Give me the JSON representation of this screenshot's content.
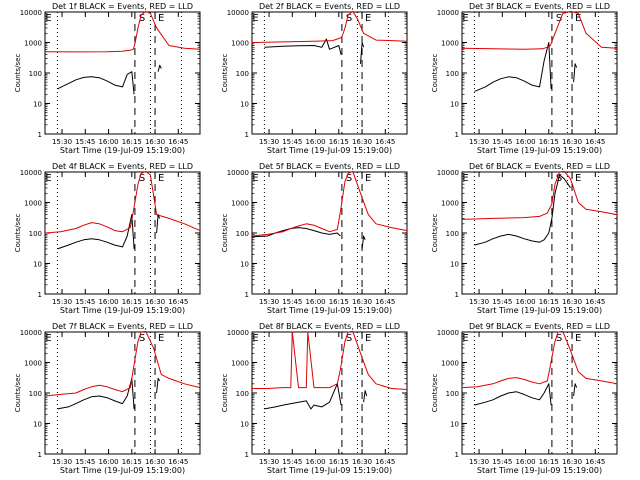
{
  "figure": {
    "panel_title_suffix": " BLACK = Events, RED = LLD",
    "ylabel": "Counts/sec",
    "xlabel": "Start Time (19-Jul-09 15:19:00)",
    "series_colors": {
      "events": "#000000",
      "lld": "#e00000"
    },
    "marker_labels": [
      "E",
      "S",
      "E"
    ]
  },
  "chart_data": [
    {
      "type": "line",
      "title": "Det 1f BLACK = Events, RED = LLD",
      "detector": "Det 1f",
      "xlabel": "Start Time (19-Jul-09 15:19:00)",
      "ylabel": "Counts/sec",
      "y_scale": "log",
      "ylim": [
        1,
        10000
      ],
      "x_tick_labels": [
        "15:30",
        "15:45",
        "16:00",
        "16:15",
        "16:30",
        "16:45"
      ],
      "x_ticks_min": [
        11,
        26,
        41,
        56,
        71,
        86
      ],
      "xlim_min": [
        0,
        100
      ],
      "dotted_lines_min": [
        8,
        68,
        88
      ],
      "dashed_lines_min": [
        58,
        71
      ],
      "series": [
        {
          "name": "Events",
          "color": "#000000",
          "x": [
            8,
            15,
            20,
            25,
            30,
            35,
            40,
            45,
            50,
            53,
            56,
            57.5
          ],
          "y": [
            30,
            45,
            60,
            72,
            75,
            70,
            55,
            40,
            35,
            90,
            110,
            20
          ]
        },
        {
          "name": "LLD",
          "color": "#e00000",
          "x": [
            0,
            20,
            40,
            50,
            55,
            57,
            58,
            60,
            62,
            65,
            68,
            72,
            80,
            90,
            100
          ],
          "y": [
            500,
            490,
            500,
            520,
            560,
            600,
            900,
            3000,
            8000,
            12000,
            9000,
            3000,
            800,
            650,
            600
          ]
        },
        {
          "name": "Events",
          "color": "#000000",
          "x": [
            73,
            74,
            75
          ],
          "y": [
            110,
            180,
            140
          ]
        }
      ]
    },
    {
      "type": "line",
      "title": "Det 2f BLACK = Events, RED = LLD",
      "detector": "Det 2f",
      "xlabel": "Start Time (19-Jul-09 15:19:00)",
      "ylabel": "Counts/sec",
      "y_scale": "log",
      "ylim": [
        1,
        10000
      ],
      "x_tick_labels": [
        "15:30",
        "15:45",
        "16:00",
        "16:15",
        "16:30",
        "16:45"
      ],
      "x_ticks_min": [
        11,
        26,
        41,
        56,
        71,
        86
      ],
      "xlim_min": [
        0,
        100
      ],
      "dotted_lines_min": [
        8,
        68,
        88
      ],
      "dashed_lines_min": [
        58,
        71
      ],
      "series": [
        {
          "name": "Events",
          "color": "#000000",
          "x": [
            8,
            20,
            30,
            40,
            45,
            48,
            50,
            56,
            57.5
          ],
          "y": [
            700,
            750,
            780,
            800,
            700,
            1300,
            600,
            800,
            400
          ]
        },
        {
          "name": "LLD",
          "color": "#e00000",
          "x": [
            0,
            20,
            40,
            52,
            55,
            57,
            58,
            60,
            62,
            65,
            68,
            72,
            80,
            90,
            100
          ],
          "y": [
            1000,
            1050,
            1100,
            1150,
            1300,
            1400,
            1500,
            3000,
            8000,
            12000,
            6000,
            2000,
            1200,
            1150,
            1100
          ]
        },
        {
          "name": "Events",
          "color": "#000000",
          "x": [
            70,
            71,
            72
          ],
          "y": [
            200,
            1000,
            700
          ]
        }
      ]
    },
    {
      "type": "line",
      "title": "Det 3f BLACK = Events, RED = LLD",
      "detector": "Det 3f",
      "xlabel": "Start Time (19-Jul-09 15:19:00)",
      "ylabel": "Counts/sec",
      "y_scale": "log",
      "ylim": [
        1,
        10000
      ],
      "x_tick_labels": [
        "15:30",
        "15:45",
        "16:00",
        "16:15",
        "16:30",
        "16:45"
      ],
      "x_ticks_min": [
        11,
        26,
        41,
        56,
        71,
        86
      ],
      "xlim_min": [
        0,
        100
      ],
      "dotted_lines_min": [
        8,
        68,
        88
      ],
      "dashed_lines_min": [
        58,
        71
      ],
      "series": [
        {
          "name": "Events",
          "color": "#000000",
          "x": [
            8,
            15,
            20,
            25,
            30,
            35,
            40,
            45,
            50,
            53,
            56,
            57.5
          ],
          "y": [
            25,
            35,
            50,
            65,
            75,
            70,
            55,
            40,
            35,
            250,
            1000,
            30
          ]
        },
        {
          "name": "LLD",
          "color": "#e00000",
          "x": [
            0,
            20,
            40,
            52,
            55,
            57,
            60,
            65,
            70,
            75,
            80,
            90,
            100
          ],
          "y": [
            650,
            620,
            600,
            620,
            700,
            800,
            2000,
            9000,
            12000,
            9000,
            2000,
            700,
            650
          ]
        },
        {
          "name": "Events",
          "color": "#000000",
          "x": [
            72,
            73,
            74
          ],
          "y": [
            50,
            200,
            150
          ]
        }
      ]
    },
    {
      "type": "line",
      "title": "Det 4f BLACK = Events, RED = LLD",
      "detector": "Det 4f",
      "xlabel": "Start Time (19-Jul-09 15:19:00)",
      "ylabel": "Counts/sec",
      "y_scale": "log",
      "ylim": [
        1,
        10000
      ],
      "x_tick_labels": [
        "15:30",
        "15:45",
        "16:00",
        "16:15",
        "16:30",
        "16:45"
      ],
      "x_ticks_min": [
        11,
        26,
        41,
        56,
        71,
        86
      ],
      "xlim_min": [
        0,
        100
      ],
      "dotted_lines_min": [
        8,
        68,
        88
      ],
      "dashed_lines_min": [
        58,
        71
      ],
      "series": [
        {
          "name": "Events",
          "color": "#000000",
          "x": [
            8,
            15,
            20,
            25,
            30,
            35,
            40,
            45,
            50,
            53,
            56,
            57.5
          ],
          "y": [
            30,
            40,
            50,
            60,
            65,
            60,
            50,
            40,
            35,
            80,
            400,
            30
          ]
        },
        {
          "name": "LLD",
          "color": "#e00000",
          "x": [
            0,
            10,
            20,
            25,
            30,
            35,
            40,
            45,
            50,
            55,
            57,
            60,
            62,
            65,
            68,
            72,
            80,
            90,
            100
          ],
          "y": [
            100,
            110,
            140,
            180,
            220,
            200,
            160,
            120,
            110,
            150,
            500,
            4000,
            9000,
            12000,
            8000,
            400,
            300,
            200,
            120
          ]
        },
        {
          "name": "Events",
          "color": "#000000",
          "x": [
            72,
            73,
            74
          ],
          "y": [
            100,
            400,
            300
          ]
        }
      ]
    },
    {
      "type": "line",
      "title": "Det 5f BLACK = Events, RED = LLD",
      "detector": "Det 5f",
      "xlabel": "Start Time (19-Jul-09 15:19:00)",
      "ylabel": "Counts/sec",
      "y_scale": "log",
      "ylim": [
        1,
        10000
      ],
      "x_tick_labels": [
        "15:30",
        "15:45",
        "16:00",
        "16:15",
        "16:30",
        "16:45"
      ],
      "x_ticks_min": [
        11,
        26,
        41,
        56,
        71,
        86
      ],
      "xlim_min": [
        0,
        100
      ],
      "dotted_lines_min": [
        8,
        68,
        88
      ],
      "dashed_lines_min": [
        58,
        71
      ],
      "series": [
        {
          "name": "Events",
          "color": "#000000",
          "x": [
            0,
            10,
            15,
            20,
            25,
            30,
            35,
            40,
            45,
            50,
            55,
            57
          ],
          "y": [
            75,
            80,
            100,
            120,
            140,
            150,
            140,
            120,
            100,
            90,
            100,
            80
          ]
        },
        {
          "name": "LLD",
          "color": "#e00000",
          "x": [
            0,
            10,
            20,
            25,
            30,
            35,
            40,
            45,
            50,
            55,
            57,
            60,
            62,
            65,
            70,
            75,
            80,
            90,
            100
          ],
          "y": [
            80,
            90,
            110,
            140,
            170,
            200,
            180,
            140,
            110,
            130,
            500,
            5000,
            9000,
            12000,
            2000,
            400,
            200,
            150,
            120
          ]
        },
        {
          "name": "Events",
          "color": "#000000",
          "x": [
            71,
            72,
            73
          ],
          "y": [
            30,
            80,
            60
          ]
        }
      ]
    },
    {
      "type": "line",
      "title": "Det 6f BLACK = Events, RED = LLD",
      "detector": "Det 6f",
      "xlabel": "Start Time (19-Jul-09 15:19:00)",
      "ylabel": "Counts/sec",
      "y_scale": "log",
      "ylim": [
        1,
        10000
      ],
      "x_tick_labels": [
        "15:30",
        "15:45",
        "16:00",
        "16:15",
        "16:30",
        "16:45"
      ],
      "x_ticks_min": [
        11,
        26,
        41,
        56,
        71,
        86
      ],
      "xlim_min": [
        0,
        100
      ],
      "dotted_lines_min": [
        8,
        68,
        88
      ],
      "dashed_lines_min": [
        58,
        71
      ],
      "series": [
        {
          "name": "Events",
          "color": "#000000",
          "x": [
            8,
            15,
            20,
            25,
            30,
            35,
            40,
            45,
            50,
            53,
            56,
            58,
            60,
            63,
            66,
            70
          ],
          "y": [
            40,
            50,
            65,
            80,
            90,
            80,
            65,
            55,
            50,
            60,
            100,
            300,
            2000,
            8000,
            6000,
            3000
          ]
        },
        {
          "name": "LLD",
          "color": "#e00000",
          "x": [
            0,
            20,
            40,
            50,
            55,
            58,
            60,
            63,
            66,
            70,
            75,
            80,
            90,
            100
          ],
          "y": [
            280,
            300,
            320,
            350,
            450,
            900,
            4000,
            10000,
            12000,
            6000,
            1000,
            600,
            500,
            400
          ]
        }
      ]
    },
    {
      "type": "line",
      "title": "Det 7f BLACK = Events, RED = LLD",
      "detector": "Det 7f",
      "xlabel": "Start Time (19-Jul-09 15:19:00)",
      "ylabel": "Counts/sec",
      "y_scale": "log",
      "ylim": [
        1,
        10000
      ],
      "x_tick_labels": [
        "15:30",
        "15:45",
        "16:00",
        "16:15",
        "16:30",
        "16:45"
      ],
      "x_ticks_min": [
        11,
        26,
        41,
        56,
        71,
        86
      ],
      "xlim_min": [
        0,
        100
      ],
      "dotted_lines_min": [
        8,
        68,
        88
      ],
      "dashed_lines_min": [
        58,
        71
      ],
      "series": [
        {
          "name": "Events",
          "color": "#000000",
          "x": [
            8,
            15,
            20,
            25,
            30,
            35,
            40,
            45,
            50,
            53,
            56,
            57.5
          ],
          "y": [
            30,
            35,
            45,
            60,
            75,
            80,
            70,
            55,
            45,
            80,
            300,
            30
          ]
        },
        {
          "name": "LLD",
          "color": "#e00000",
          "x": [
            0,
            10,
            20,
            25,
            30,
            35,
            40,
            45,
            50,
            55,
            57,
            60,
            62,
            65,
            70,
            75,
            80,
            90,
            100
          ],
          "y": [
            80,
            90,
            100,
            130,
            160,
            180,
            160,
            130,
            110,
            150,
            600,
            5000,
            10000,
            12000,
            3000,
            400,
            300,
            200,
            150
          ]
        },
        {
          "name": "Events",
          "color": "#000000",
          "x": [
            72,
            73,
            74
          ],
          "y": [
            100,
            300,
            250
          ]
        }
      ]
    },
    {
      "type": "line",
      "title": "Det 8f BLACK = Events, RED = LLD",
      "detector": "Det 8f",
      "xlabel": "Start Time (19-Jul-09 15:19:00)",
      "ylabel": "Counts/sec",
      "y_scale": "log",
      "ylim": [
        1,
        10000
      ],
      "x_tick_labels": [
        "15:30",
        "15:45",
        "16:00",
        "16:15",
        "16:30",
        "16:45"
      ],
      "x_ticks_min": [
        11,
        26,
        41,
        56,
        71,
        86
      ],
      "xlim_min": [
        0,
        100
      ],
      "dotted_lines_min": [
        8,
        68,
        88
      ],
      "dashed_lines_min": [
        58,
        71
      ],
      "series": [
        {
          "name": "Events",
          "color": "#000000",
          "x": [
            8,
            15,
            20,
            25,
            30,
            35,
            38,
            40,
            45,
            50,
            55,
            57.5
          ],
          "y": [
            30,
            35,
            40,
            45,
            50,
            55,
            30,
            40,
            35,
            50,
            200,
            40
          ]
        },
        {
          "name": "LLD",
          "color": "#e00000",
          "x": [
            0,
            10,
            20,
            25,
            26,
            30,
            35,
            36,
            40,
            45,
            50,
            55,
            57,
            60,
            62,
            65,
            70,
            75,
            80,
            90,
            100
          ],
          "y": [
            140,
            140,
            150,
            150,
            10000,
            150,
            150,
            10000,
            150,
            150,
            150,
            200,
            600,
            5000,
            10000,
            12000,
            2000,
            400,
            200,
            140,
            130
          ]
        },
        {
          "name": "Events",
          "color": "#000000",
          "x": [
            72,
            73,
            74
          ],
          "y": [
            50,
            120,
            80
          ]
        }
      ]
    },
    {
      "type": "line",
      "title": "Det 9f BLACK = Events, RED = LLD",
      "detector": "Det 9f",
      "xlabel": "Start Time (19-Jul-09 15:19:00)",
      "ylabel": "Counts/sec",
      "y_scale": "log",
      "ylim": [
        1,
        10000
      ],
      "x_tick_labels": [
        "15:30",
        "15:45",
        "16:00",
        "16:15",
        "16:30",
        "16:45"
      ],
      "x_ticks_min": [
        11,
        26,
        41,
        56,
        71,
        86
      ],
      "xlim_min": [
        0,
        100
      ],
      "dotted_lines_min": [
        8,
        68,
        88
      ],
      "dashed_lines_min": [
        58,
        71
      ],
      "series": [
        {
          "name": "Events",
          "color": "#000000",
          "x": [
            8,
            15,
            20,
            25,
            30,
            35,
            40,
            45,
            50,
            53,
            56,
            57.5
          ],
          "y": [
            40,
            50,
            60,
            80,
            100,
            110,
            90,
            70,
            60,
            100,
            200,
            40
          ]
        },
        {
          "name": "LLD",
          "color": "#e00000",
          "x": [
            0,
            10,
            20,
            25,
            30,
            35,
            40,
            45,
            50,
            55,
            57,
            60,
            62,
            65,
            70,
            75,
            80,
            90,
            100
          ],
          "y": [
            150,
            160,
            200,
            250,
            300,
            320,
            280,
            230,
            200,
            250,
            800,
            5000,
            10000,
            12000,
            2500,
            500,
            300,
            250,
            200
          ]
        },
        {
          "name": "Events",
          "color": "#000000",
          "x": [
            72,
            73,
            74
          ],
          "y": [
            80,
            200,
            150
          ]
        }
      ]
    }
  ]
}
